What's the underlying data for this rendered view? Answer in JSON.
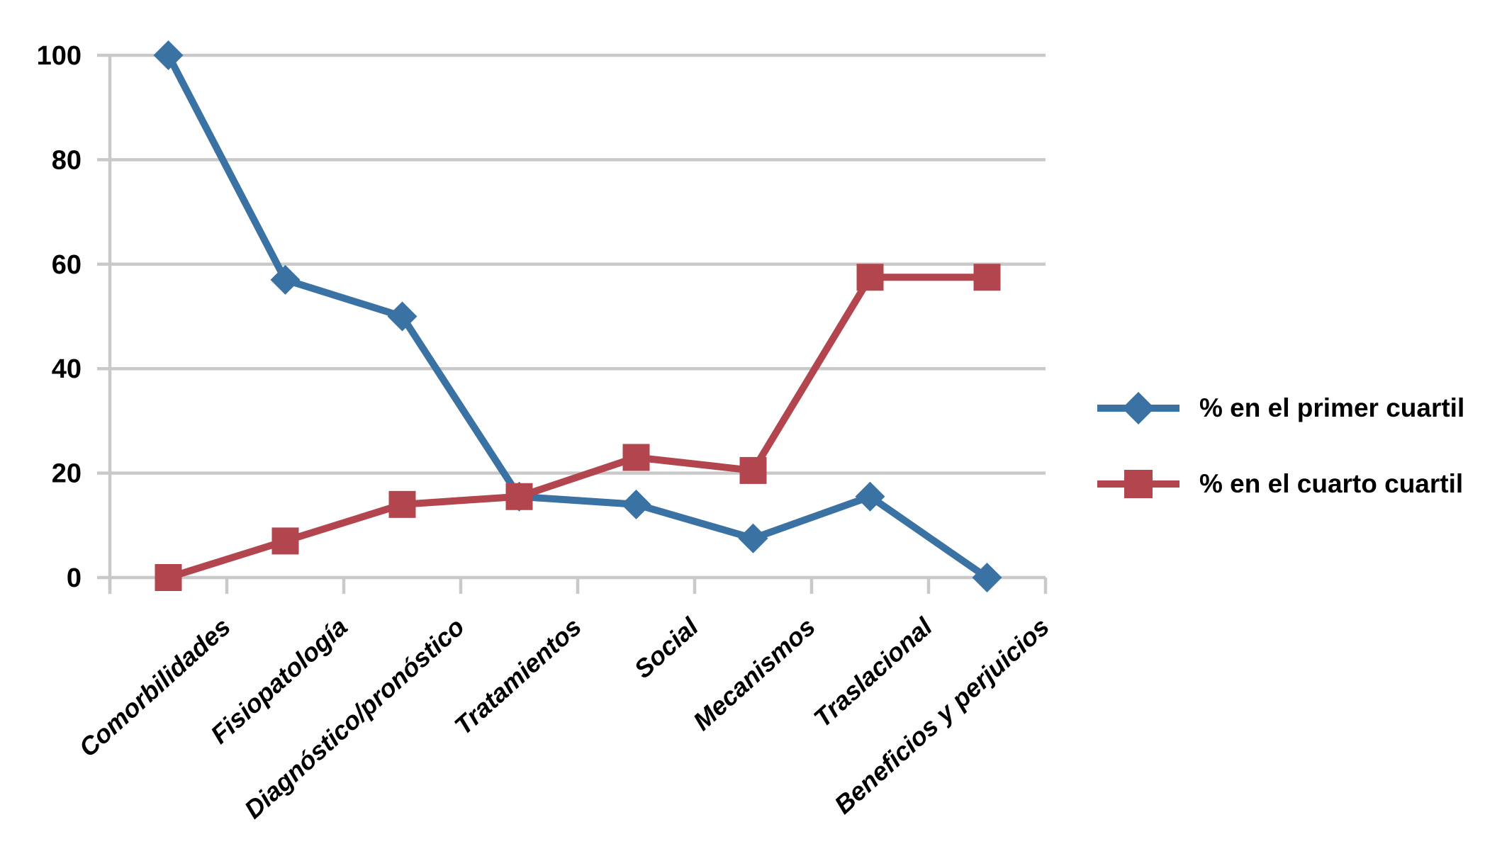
{
  "chart_data": {
    "type": "line",
    "title": "",
    "xlabel": "",
    "ylabel": "",
    "categories": [
      "Comorbilidades",
      "Fisiopatología",
      "Diagnóstico/pronóstico",
      "Tratamientos",
      "Social",
      "Mecanismos",
      "Traslacional",
      "Beneficios y perjuicios"
    ],
    "series": [
      {
        "name": "% en el primer cuartil",
        "marker": "diamond",
        "color": "#3A72A4",
        "values": [
          100,
          57,
          50,
          15.5,
          14,
          7.5,
          15.5,
          0
        ]
      },
      {
        "name": "% en el cuarto cuartil",
        "marker": "square",
        "color": "#B3454E",
        "values": [
          0,
          7,
          14,
          15.5,
          23,
          20.5,
          57.5,
          57.5
        ]
      }
    ],
    "ylim": [
      0,
      100
    ],
    "y_ticks": [
      0,
      20,
      40,
      60,
      80,
      100
    ],
    "y_tick_labels": [
      "0",
      "20",
      "40",
      "60",
      "80",
      "100"
    ],
    "grid": true,
    "legend_position": "right",
    "grid_color": "#C9C9C9",
    "axis_color": "#C9C9C9",
    "background": "#FFFFFF",
    "text_color": "#000000"
  }
}
